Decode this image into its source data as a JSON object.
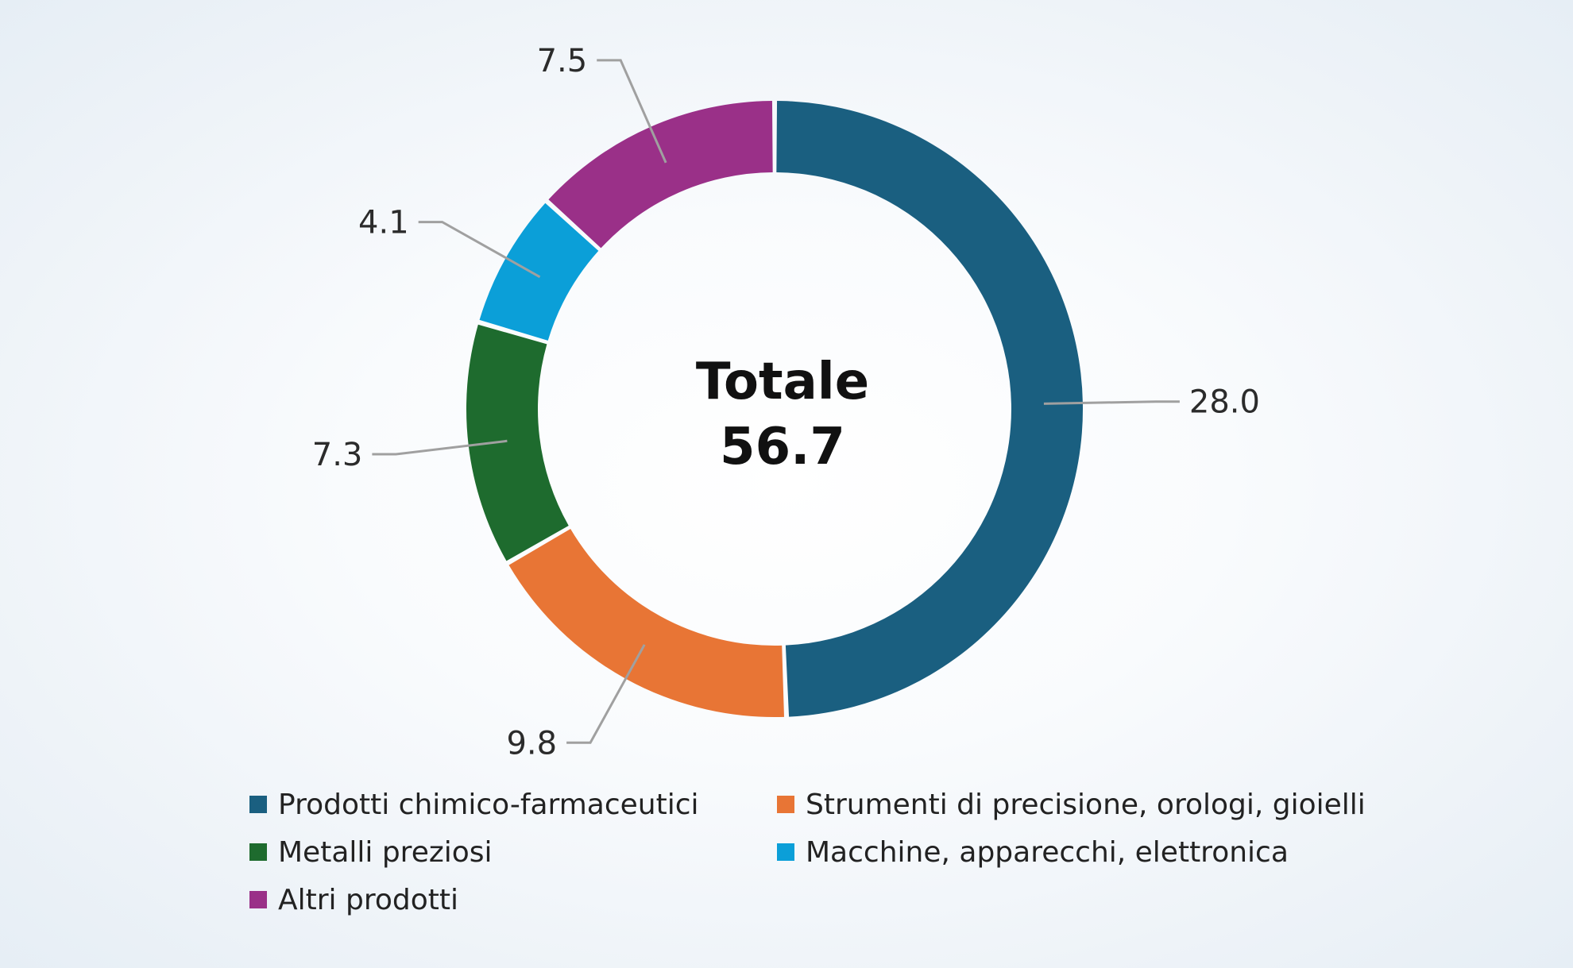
{
  "chart_data": {
    "type": "donut",
    "center_label": {
      "title": "Totale",
      "value": "56.7"
    },
    "total": 56.7,
    "series": [
      {
        "name": "Prodotti chimico-farmaceutici",
        "value": 28.0,
        "label": "28.0",
        "color": "#1a5f80"
      },
      {
        "name": "Strumenti di precisione, orologi, gioielli",
        "value": 9.8,
        "label": "9.8",
        "color": "#e87535"
      },
      {
        "name": "Metalli preziosi",
        "value": 7.3,
        "label": "7.3",
        "color": "#1e6b2e"
      },
      {
        "name": "Macchine, apparecchi, elettronica",
        "value": 4.1,
        "label": "4.1",
        "color": "#0b9fd8"
      },
      {
        "name": "Altri prodotti",
        "value": 7.5,
        "label": "7.5",
        "color": "#9a3088"
      }
    ],
    "legend": {
      "position": "bottom",
      "items": [
        {
          "label": "Prodotti chimico-farmaceutici",
          "color": "#1a5f80"
        },
        {
          "label": "Strumenti di precisione, orologi, gioielli",
          "color": "#e87535"
        },
        {
          "label": "Metalli preziosi",
          "color": "#1e6b2e"
        },
        {
          "label": "Macchine, apparecchi, elettronica",
          "color": "#0b9fd8"
        },
        {
          "label": "Altri prodotti",
          "color": "#9a3088"
        }
      ]
    },
    "leader_line_color": "#a0a0a0"
  }
}
